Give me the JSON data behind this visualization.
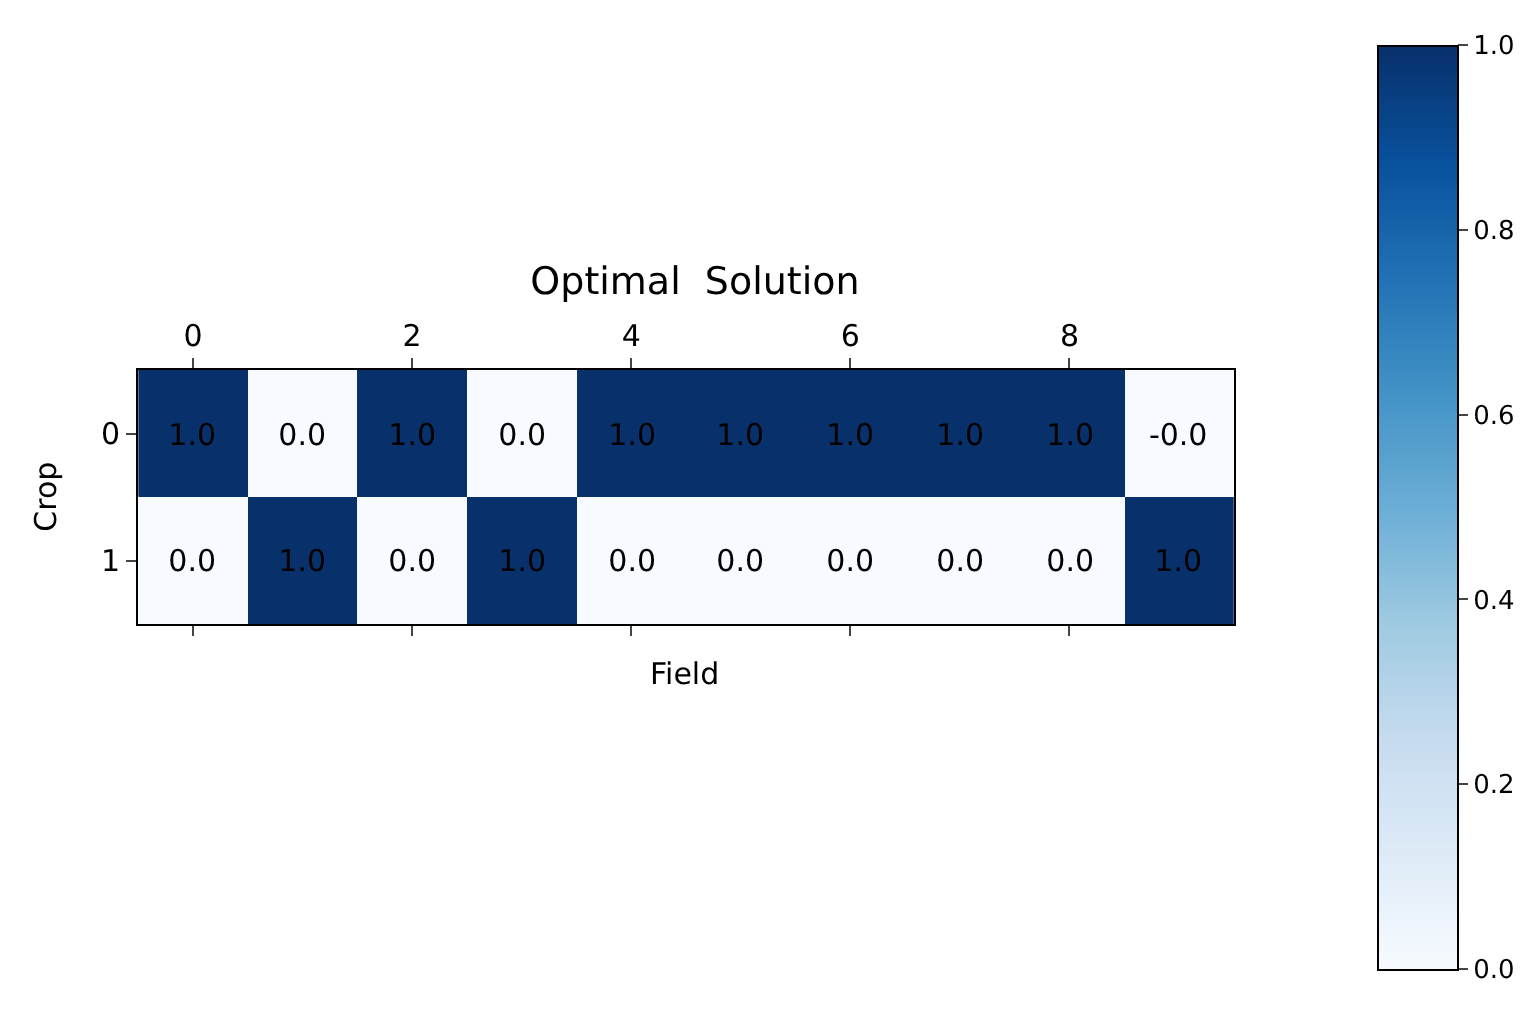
{
  "chart_data": {
    "type": "heatmap",
    "title": "Optimal  Solution",
    "xlabel": "Field",
    "ylabel": "Crop",
    "categories": [
      "0",
      null,
      "2",
      null,
      "4",
      null,
      "6",
      null,
      "8",
      null
    ],
    "y_categories": [
      "0",
      "1"
    ],
    "cells": [
      [
        1,
        0,
        1,
        0,
        1,
        1,
        1,
        1,
        1,
        0
      ],
      [
        0,
        1,
        0,
        1,
        0,
        0,
        0,
        0,
        0,
        1
      ]
    ],
    "cell_labels": [
      [
        "1.0",
        "0.0",
        "1.0",
        "0.0",
        "1.0",
        "1.0",
        "1.0",
        "1.0",
        "1.0",
        "-0.0"
      ],
      [
        "0.0",
        "1.0",
        "0.0",
        "1.0",
        "0.0",
        "0.0",
        "0.0",
        "0.0",
        "0.0",
        "1.0"
      ]
    ],
    "clim": [
      0,
      1
    ],
    "cticks": [
      {
        "value": 0,
        "label": "0.0"
      },
      {
        "value": 0.2,
        "label": "0.2"
      },
      {
        "value": 0.4,
        "label": "0.4"
      },
      {
        "value": 0.6,
        "label": "0.6"
      },
      {
        "value": 0.8,
        "label": "0.8"
      },
      {
        "value": 1,
        "label": "1.0"
      }
    ]
  }
}
